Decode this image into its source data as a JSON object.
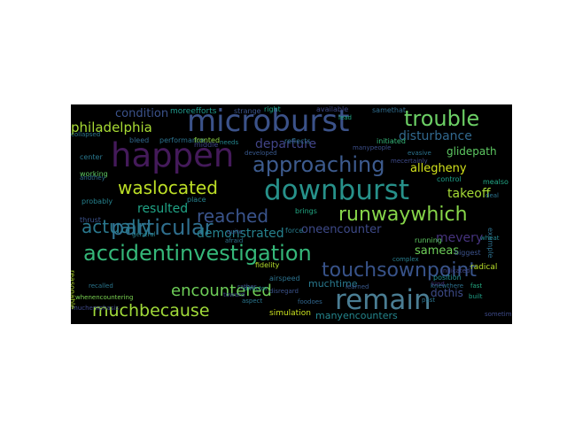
{
  "wordcloud": {
    "background": "#000000",
    "words": [
      {
        "text": "microburst",
        "color": "#3b5289"
      },
      {
        "text": "happen",
        "color": "#441a5a"
      },
      {
        "text": "downburst",
        "color": "#27918a"
      },
      {
        "text": "remain",
        "color": "#4a7d93"
      },
      {
        "text": "approaching",
        "color": "#3d5b8e"
      },
      {
        "text": "trouble",
        "color": "#6ccf65"
      },
      {
        "text": "accidentinvestigation",
        "color": "#35b779"
      },
      {
        "text": "particular",
        "color": "#2f6f8e"
      },
      {
        "text": "touchsownpoint",
        "color": "#38538a"
      },
      {
        "text": "runwaywhich",
        "color": "#86d549"
      },
      {
        "text": "waslocated",
        "color": "#bddf26"
      },
      {
        "text": "actually",
        "color": "#2a788e"
      },
      {
        "text": "reached",
        "color": "#3a548c"
      },
      {
        "text": "muchbecause",
        "color": "#a0da39"
      },
      {
        "text": "encountered",
        "color": "#6ece58"
      },
      {
        "text": "philadelphia",
        "color": "#a8db34"
      },
      {
        "text": "condition",
        "color": "#3b528b"
      },
      {
        "text": "departure",
        "color": "#414487"
      },
      {
        "text": "disturbance",
        "color": "#31688e"
      },
      {
        "text": "allegheny",
        "color": "#d2e21b"
      },
      {
        "text": "glidepath",
        "color": "#5ec962"
      },
      {
        "text": "takeoff",
        "color": "#a5db36"
      },
      {
        "text": "resulted",
        "color": "#20a486"
      },
      {
        "text": "demonstrated",
        "color": "#26828e"
      },
      {
        "text": "oneencounter",
        "color": "#3e4a89"
      },
      {
        "text": "mevery",
        "color": "#46337e"
      },
      {
        "text": "sameas",
        "color": "#6ece58"
      },
      {
        "text": "muchtime",
        "color": "#29798e"
      },
      {
        "text": "dothis",
        "color": "#3e4c8a"
      },
      {
        "text": "manyencounters",
        "color": "#24868e"
      },
      {
        "text": "moreefforts",
        "color": "#1f988b"
      },
      {
        "text": "bleed",
        "color": "#31688e"
      },
      {
        "text": "performance",
        "color": "#2c728e"
      },
      {
        "text": "fronted",
        "color": "#8ed645"
      },
      {
        "text": "right",
        "color": "#20a386"
      },
      {
        "text": "strange",
        "color": "#3a538b"
      },
      {
        "text": "center",
        "color": "#2a788e"
      },
      {
        "text": "working",
        "color": "#5ec962"
      },
      {
        "text": "probably",
        "color": "#26828e"
      },
      {
        "text": "thrust",
        "color": "#3b528b"
      },
      {
        "text": "fidelity",
        "color": "#b5de2b"
      },
      {
        "text": "airspeed",
        "color": "#2c728e"
      },
      {
        "text": "simulation",
        "color": "#cae11f"
      },
      {
        "text": "force",
        "color": "#287c8e"
      },
      {
        "text": "place",
        "color": "#26828e"
      },
      {
        "text": "middle",
        "color": "#3f4788"
      },
      {
        "text": "developed",
        "color": "#38588c"
      },
      {
        "text": "director",
        "color": "#24878e"
      },
      {
        "text": "reflects",
        "color": "#2e6f8e"
      },
      {
        "text": "brings",
        "color": "#22a884"
      },
      {
        "text": "available",
        "color": "#3e4989"
      },
      {
        "text": "samethat",
        "color": "#2f6c8e"
      },
      {
        "text": "initiated",
        "color": "#35b779"
      },
      {
        "text": "control",
        "color": "#1fa088"
      },
      {
        "text": "mealso",
        "color": "#22a785"
      },
      {
        "text": "running",
        "color": "#5ec962"
      },
      {
        "text": "biggest",
        "color": "#3b528b"
      },
      {
        "text": "radical",
        "color": "#b8de29"
      },
      {
        "text": "position",
        "color": "#218f8d"
      },
      {
        "text": "kind",
        "color": "#46337e"
      },
      {
        "text": "built",
        "color": "#1fa187"
      },
      {
        "text": "fast",
        "color": "#25ac82"
      },
      {
        "text": "sometime",
        "color": "#3e4a89"
      },
      {
        "text": "example",
        "color": "#2d708e"
      },
      {
        "text": "general",
        "color": "#26818e"
      },
      {
        "text": "rather",
        "color": "#3b528b"
      },
      {
        "text": "aspect",
        "color": "#2a768e"
      },
      {
        "text": "whenencountering",
        "color": "#7ad151"
      },
      {
        "text": "muchemphasis",
        "color": "#3f4889"
      },
      {
        "text": "andthey",
        "color": "#2e6e8e"
      },
      {
        "text": "collapsed",
        "color": "#2b758e"
      },
      {
        "text": "quite",
        "color": "#3a548c"
      },
      {
        "text": "afraid",
        "color": "#2d718e"
      },
      {
        "text": "learned",
        "color": "#38588c"
      },
      {
        "text": "mecertainly",
        "color": "#3e4a89"
      },
      {
        "text": "evasive",
        "color": "#2c738e"
      },
      {
        "text": "lead",
        "color": "#22a884"
      },
      {
        "text": "reasonable",
        "color": "#b2dd2d"
      },
      {
        "text": "recalled",
        "color": "#2a768e"
      },
      {
        "text": "needs",
        "color": "#24868e"
      },
      {
        "text": "toward",
        "color": "#3e4c8a"
      },
      {
        "text": "disregard",
        "color": "#3b528b"
      },
      {
        "text": "foodoes",
        "color": "#31668e"
      },
      {
        "text": "past",
        "color": "#2c738e"
      },
      {
        "text": "indicated",
        "color": "#3f4788"
      },
      {
        "text": "complex",
        "color": "#287d8e"
      },
      {
        "text": "wheat",
        "color": "#25848e"
      },
      {
        "text": "knewthere",
        "color": "#2d718e"
      },
      {
        "text": "manypeople",
        "color": "#3c4f8a"
      },
      {
        "text": "deal",
        "color": "#2b748e"
      }
    ]
  }
}
